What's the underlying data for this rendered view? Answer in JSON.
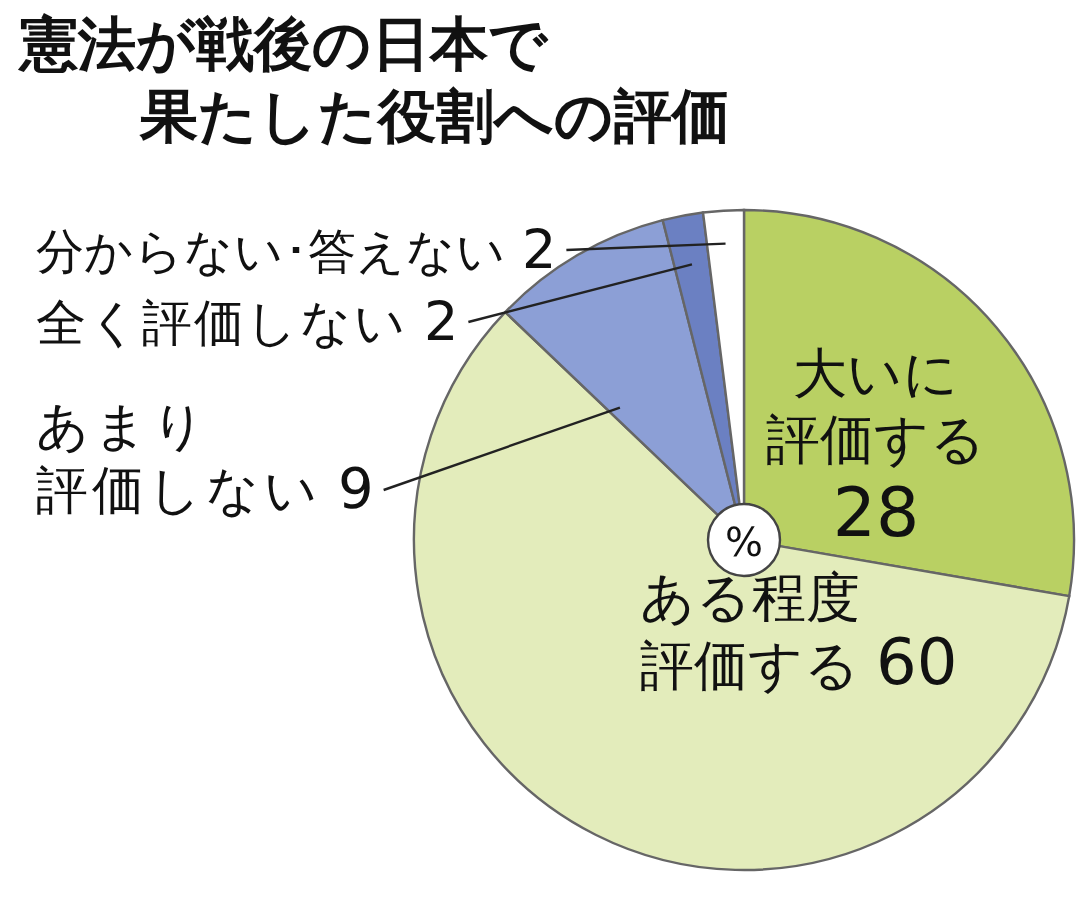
{
  "chart_data": {
    "type": "pie",
    "title": "憲法が戦後の日本で果たした役割への評価",
    "categories": [
      "大いに評価する",
      "ある程度評価する",
      "あまり評価しない",
      "全く評価しない",
      "分からない･答えない"
    ],
    "values": [
      28,
      60,
      9,
      2,
      2
    ],
    "colors": [
      "#b9d063",
      "#e3ecbb",
      "#8c9fd6",
      "#6b80c2",
      "#ffffff"
    ],
    "data_labels": true,
    "annotations": [
      "%"
    ]
  }
}
